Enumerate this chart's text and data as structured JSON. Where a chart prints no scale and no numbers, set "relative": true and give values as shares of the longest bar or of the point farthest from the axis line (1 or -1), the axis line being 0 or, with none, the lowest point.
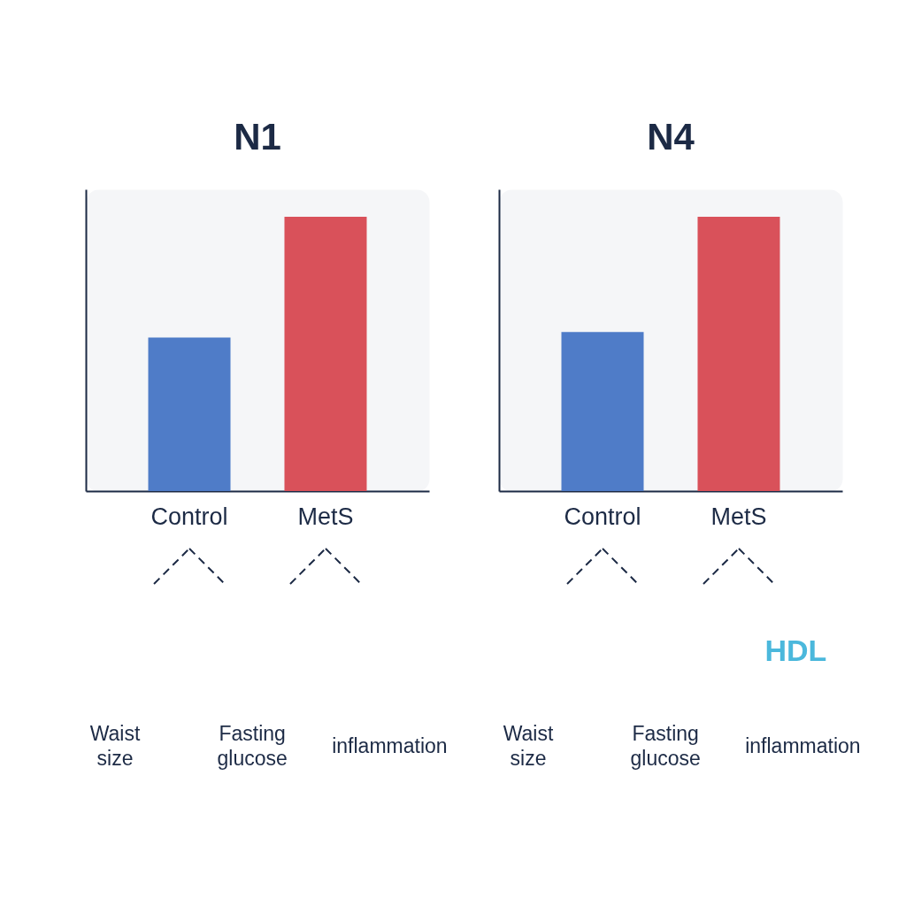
{
  "chart_data": [
    {
      "type": "bar",
      "title": "N1",
      "categories": [
        "Control",
        "MetS"
      ],
      "values": [
        0.56,
        1
      ],
      "colors": [
        "#4f7cc8",
        "#d9515a"
      ],
      "relative": true,
      "annotations": [
        "Waist size",
        "Fasting glucose",
        "inflammation"
      ]
    },
    {
      "type": "bar",
      "title": "N4",
      "categories": [
        "Control",
        "MetS"
      ],
      "values": [
        0.58,
        1
      ],
      "colors": [
        "#4f7cc8",
        "#d9515a"
      ],
      "relative": true,
      "annotations": [
        "HDL",
        "Waist size",
        "Fasting glucose",
        "inflammation"
      ]
    }
  ]
}
